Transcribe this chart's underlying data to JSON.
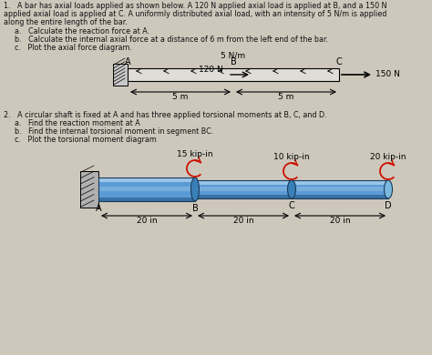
{
  "bg_color": "#cec8bc",
  "text_color": "#111111",
  "title1_lines": [
    "1.   A bar has axial loads applied as shown below. A 120 N applied axial load is applied at B, and a 150 N",
    "applied axial load is applied at C. A uniformly distributed axial load, with an intensity of 5 N/m is applied",
    "along the entire length of the bar."
  ],
  "sub1": [
    "a.   Calculate the reaction force at A.",
    "b.   Calculate the internal axial force at a distance of 6 m from the left end of the bar.",
    "c.   Plot the axial force diagram."
  ],
  "bar_label_A": "A",
  "bar_label_B": "B",
  "bar_label_C": "C",
  "bar_force1": "120 N",
  "bar_dist": "5 N/m",
  "bar_force2": "150 N",
  "bar_dim1": "5 m",
  "bar_dim2": "5 m",
  "title2_lines": [
    "2.   A circular shaft is fixed at A and has three applied torsional moments at B, C, and D."
  ],
  "sub2": [
    "a.   Find the reaction moment at A",
    "b.   Find the internal torsional moment in segment BC.",
    "c.   Plot the torsional moment diagram"
  ],
  "shaft_labels": [
    "A",
    "B",
    "C",
    "D"
  ],
  "shaft_moments": [
    "15 kip-in",
    "10 kip-in",
    "20 kip-in"
  ],
  "shaft_dims": [
    "20 in",
    "20 in",
    "20 in"
  ],
  "shaft_blue": "#5b9bd5",
  "shaft_light": "#a8d0ee",
  "shaft_dark": "#2a6090",
  "wall_color": "#aaaaaa",
  "arrow_red": "#cc1100",
  "bar_fill": "#e0ddd8",
  "bar_edge": "#000000",
  "fs_main": 5.8,
  "fs_label": 7.0,
  "fs_small": 6.5
}
